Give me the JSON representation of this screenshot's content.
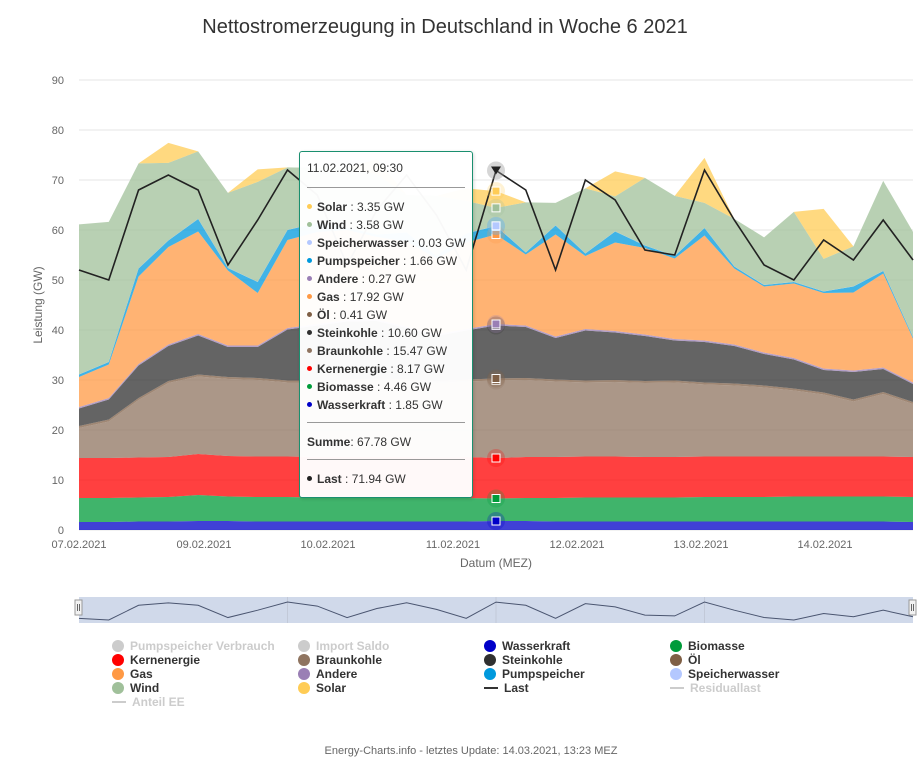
{
  "chart_data": {
    "type": "area",
    "stacked": true,
    "title": "Nettostromerzeugung in Deutschland in Woche 6 2021",
    "xlabel": "Datum (MEZ)",
    "ylabel": "Leistung (GW)",
    "ylim": [
      0,
      90
    ],
    "yticks": [
      0,
      10,
      20,
      30,
      40,
      50,
      60,
      70,
      80,
      90
    ],
    "xticks": [
      "07.02.2021",
      "09.02.2021",
      "10.02.2021",
      "11.02.2021",
      "12.02.2021",
      "13.02.2021",
      "14.02.2021"
    ],
    "grid": true,
    "x_points": 29,
    "series": [
      {
        "name": "Wasserkraft",
        "color": "#0000c8",
        "values": [
          1.6,
          1.6,
          1.7,
          1.7,
          1.8,
          1.8,
          1.7,
          1.7,
          1.7,
          1.7,
          1.7,
          1.7,
          1.7,
          1.7,
          1.8,
          1.8,
          1.7,
          1.7,
          1.7,
          1.7,
          1.7,
          1.7,
          1.7,
          1.7,
          1.7,
          1.7,
          1.7,
          1.7,
          1.6
        ]
      },
      {
        "name": "Biomasse",
        "color": "#009b3a",
        "values": [
          4.8,
          4.8,
          4.8,
          4.9,
          5.2,
          4.9,
          4.9,
          4.9,
          4.8,
          4.8,
          4.8,
          4.8,
          4.7,
          4.7,
          4.5,
          4.6,
          4.7,
          4.8,
          4.8,
          4.8,
          4.8,
          4.9,
          4.9,
          4.9,
          5.0,
          5.0,
          5.0,
          5.0,
          5.0
        ]
      },
      {
        "name": "Kernenergie",
        "color": "#ff0000",
        "values": [
          8.0,
          8.0,
          8.0,
          8.0,
          8.2,
          8.1,
          8.1,
          8.1,
          8.1,
          8.1,
          8.1,
          8.1,
          8.1,
          8.2,
          8.1,
          8.2,
          8.2,
          8.2,
          8.2,
          8.1,
          8.1,
          8.1,
          8.1,
          8.1,
          8.0,
          8.0,
          8.0,
          8.0,
          8.0
        ]
      },
      {
        "name": "Braunkohle",
        "color": "#8f7460",
        "values": [
          6.0,
          7.3,
          11.5,
          14.8,
          15.5,
          15.4,
          15.3,
          14.8,
          14.9,
          15.1,
          15.3,
          15.2,
          14.9,
          15.1,
          15.5,
          15.4,
          15.1,
          14.8,
          14.9,
          14.8,
          14.9,
          14.4,
          14.2,
          13.8,
          13.2,
          12.4,
          11.0,
          12.5,
          10.6
        ]
      },
      {
        "name": "Öl",
        "color": "#7f5f45",
        "values": [
          0.4,
          0.4,
          0.4,
          0.4,
          0.4,
          0.4,
          0.4,
          0.4,
          0.4,
          0.4,
          0.4,
          0.4,
          0.4,
          0.4,
          0.4,
          0.4,
          0.4,
          0.4,
          0.4,
          0.4,
          0.4,
          0.4,
          0.4,
          0.4,
          0.4,
          0.4,
          0.4,
          0.4,
          0.4
        ]
      },
      {
        "name": "Steinkohle",
        "color": "#303030",
        "values": [
          3.5,
          4.0,
          6.5,
          7.0,
          7.8,
          6.0,
          6.2,
          10.2,
          11.0,
          11.6,
          11.5,
          10.2,
          9.0,
          9.8,
          10.6,
          10.2,
          8.3,
          10.0,
          9.5,
          9.0,
          8.0,
          8.1,
          7.5,
          6.3,
          5.8,
          4.5,
          5.5,
          4.6,
          3.6
        ]
      },
      {
        "name": "Andere",
        "color": "#9a7fb5",
        "values": [
          0.3,
          0.3,
          0.3,
          0.3,
          0.3,
          0.3,
          0.3,
          0.3,
          0.3,
          0.3,
          0.3,
          0.3,
          0.3,
          0.3,
          0.3,
          0.3,
          0.3,
          0.3,
          0.3,
          0.3,
          0.3,
          0.3,
          0.3,
          0.3,
          0.3,
          0.3,
          0.3,
          0.3,
          0.3
        ]
      },
      {
        "name": "Gas",
        "color": "#ff9944",
        "values": [
          6.0,
          6.7,
          17.5,
          19.5,
          20.5,
          15.0,
          10.5,
          17.6,
          18.4,
          18.0,
          16.5,
          17.0,
          15.2,
          17.3,
          17.9,
          14.2,
          20.4,
          14.6,
          17.7,
          17.3,
          16.1,
          21.0,
          15.2,
          13.2,
          14.9,
          15.1,
          15.6,
          18.8,
          8.8
        ]
      },
      {
        "name": "Pumpspeicher",
        "color": "#0099dd",
        "values": [
          0.5,
          0.5,
          1.6,
          1.3,
          2.5,
          0.5,
          2.2,
          2.0,
          1.8,
          0.5,
          0.5,
          1.8,
          0.5,
          1.8,
          1.7,
          0.4,
          1.8,
          0.5,
          2.2,
          0.5,
          0.5,
          1.5,
          0.4,
          0.3,
          0.3,
          0.3,
          1.2,
          0.5,
          0.3
        ]
      },
      {
        "name": "Speicherwasser",
        "color": "#b4c8ff",
        "values": [
          0.03,
          0.03,
          0.03,
          0.03,
          0.03,
          0.03,
          0.03,
          0.03,
          0.03,
          0.03,
          0.03,
          0.03,
          0.03,
          0.03,
          0.03,
          0.03,
          0.03,
          0.03,
          0.03,
          0.03,
          0.03,
          0.03,
          0.03,
          0.03,
          0.03,
          0.03,
          0.03,
          0.03,
          0.03
        ]
      },
      {
        "name": "Wind",
        "color": "#a0c09a",
        "values": [
          30.0,
          28.0,
          21.0,
          15.5,
          13.5,
          15.0,
          20.0,
          12.5,
          11.0,
          12.0,
          12.0,
          7.5,
          12.0,
          6.5,
          3.6,
          10.0,
          4.5,
          13.0,
          7.0,
          13.5,
          12.0,
          5.0,
          9.5,
          9.5,
          14.0,
          6.5,
          8.0,
          18.0,
          21.0
        ]
      },
      {
        "name": "Solar",
        "color": "#ffcc55",
        "values": [
          0,
          0,
          0,
          4.0,
          0,
          0,
          2.5,
          0,
          0,
          0,
          3.0,
          0,
          0,
          2.5,
          3.35,
          0,
          0,
          0,
          5.0,
          0,
          0,
          9.0,
          0,
          0,
          0,
          10.0,
          0,
          0,
          0
        ]
      }
    ],
    "line_series": [
      {
        "name": "Last",
        "color": "#222222",
        "values": [
          52,
          50,
          68,
          71,
          68,
          53,
          62,
          72,
          67,
          53,
          64,
          71,
          63,
          52,
          71.9,
          68,
          52,
          70,
          66,
          56,
          55,
          72,
          62,
          53,
          50,
          58,
          54,
          62,
          54
        ]
      }
    ],
    "legend_position": "bottom",
    "legend": [
      {
        "name": "Pumpspeicher Verbrauch",
        "color": "#cccccc",
        "type": "dot",
        "hidden": true
      },
      {
        "name": "Import Saldo",
        "color": "#cccccc",
        "type": "dot",
        "hidden": true
      },
      {
        "name": "Wasserkraft",
        "color": "#0000c8",
        "type": "dot",
        "hidden": false
      },
      {
        "name": "Biomasse",
        "color": "#009b3a",
        "type": "dot",
        "hidden": false
      },
      {
        "name": "Kernenergie",
        "color": "#ff0000",
        "type": "dot",
        "hidden": false
      },
      {
        "name": "Braunkohle",
        "color": "#8f7460",
        "type": "dot",
        "hidden": false
      },
      {
        "name": "Steinkohle",
        "color": "#303030",
        "type": "dot",
        "hidden": false
      },
      {
        "name": "Öl",
        "color": "#7f5f45",
        "type": "dot",
        "hidden": false
      },
      {
        "name": "Gas",
        "color": "#ff9944",
        "type": "dot",
        "hidden": false
      },
      {
        "name": "Andere",
        "color": "#9a7fb5",
        "type": "dot",
        "hidden": false
      },
      {
        "name": "Pumpspeicher",
        "color": "#0099dd",
        "type": "dot",
        "hidden": false
      },
      {
        "name": "Speicherwasser",
        "color": "#b4c8ff",
        "type": "dot",
        "hidden": false
      },
      {
        "name": "Wind",
        "color": "#a0c09a",
        "type": "dot",
        "hidden": false
      },
      {
        "name": "Solar",
        "color": "#ffcc55",
        "type": "dot",
        "hidden": false
      },
      {
        "name": "Last",
        "color": "#333333",
        "type": "line",
        "hidden": false
      },
      {
        "name": "Residuallast",
        "color": "#cccccc",
        "type": "line",
        "hidden": true
      },
      {
        "name": "Anteil EE",
        "color": "#cccccc",
        "type": "line",
        "hidden": true
      }
    ]
  },
  "tooltip": {
    "date": "11.02.2021, 09:30",
    "hover_index": 14,
    "rows": [
      {
        "name": "Solar",
        "value": "3.35 GW",
        "color": "#ffcc55"
      },
      {
        "name": "Wind",
        "value": "3.58 GW",
        "color": "#a0c09a"
      },
      {
        "name": "Speicherwasser",
        "value": "0.03 GW",
        "color": "#b4c8ff"
      },
      {
        "name": "Pumpspeicher",
        "value": "1.66 GW",
        "color": "#0099dd"
      },
      {
        "name": "Andere",
        "value": "0.27 GW",
        "color": "#9a7fb5"
      },
      {
        "name": "Gas",
        "value": "17.92 GW",
        "color": "#ff9944"
      },
      {
        "name": "Öl",
        "value": "0.41 GW",
        "color": "#7f5f45"
      },
      {
        "name": "Steinkohle",
        "value": "10.60 GW",
        "color": "#303030"
      },
      {
        "name": "Braunkohle",
        "value": "15.47 GW",
        "color": "#8f7460"
      },
      {
        "name": "Kernenergie",
        "value": "8.17 GW",
        "color": "#ff0000"
      },
      {
        "name": "Biomasse",
        "value": "4.46 GW",
        "color": "#009b3a"
      },
      {
        "name": "Wasserkraft",
        "value": "1.85 GW",
        "color": "#0000c8"
      }
    ],
    "sum_label": "Summe",
    "sum_value": "67.78 GW",
    "last_label": "Last",
    "last_value": "71.94 GW",
    "last_color": "#222222"
  },
  "footer": "Energy-Charts.info - letztes Update: 14.03.2021, 13:23 MEZ"
}
